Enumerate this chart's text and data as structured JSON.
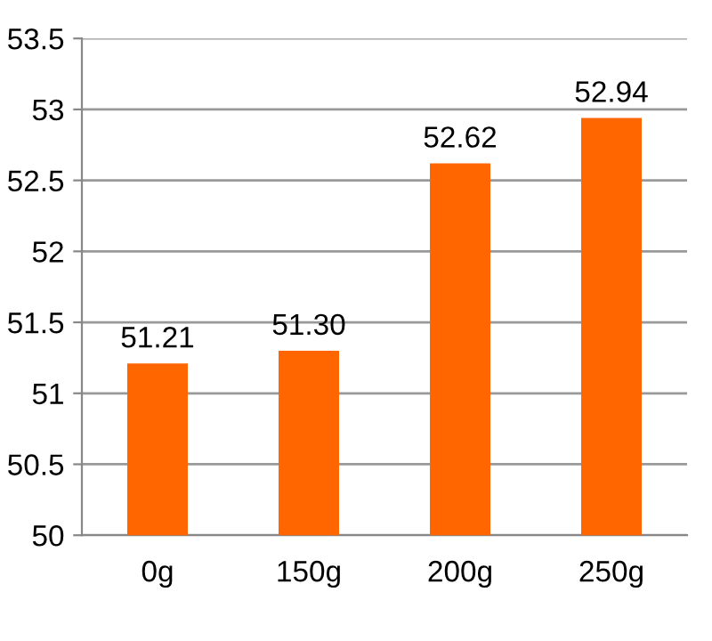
{
  "chart_data": {
    "type": "bar",
    "categories": [
      "0g",
      "150g",
      "200g",
      "250g"
    ],
    "values": [
      51.21,
      51.3,
      52.62,
      52.94
    ],
    "value_labels": [
      "51.21",
      "51.30",
      "52.62",
      "52.94"
    ],
    "color": "#ff6600",
    "ylim": [
      50,
      53.5
    ],
    "yticks": [
      50,
      50.5,
      51,
      51.5,
      52,
      52.5,
      53,
      53.5
    ],
    "grid": "y"
  }
}
